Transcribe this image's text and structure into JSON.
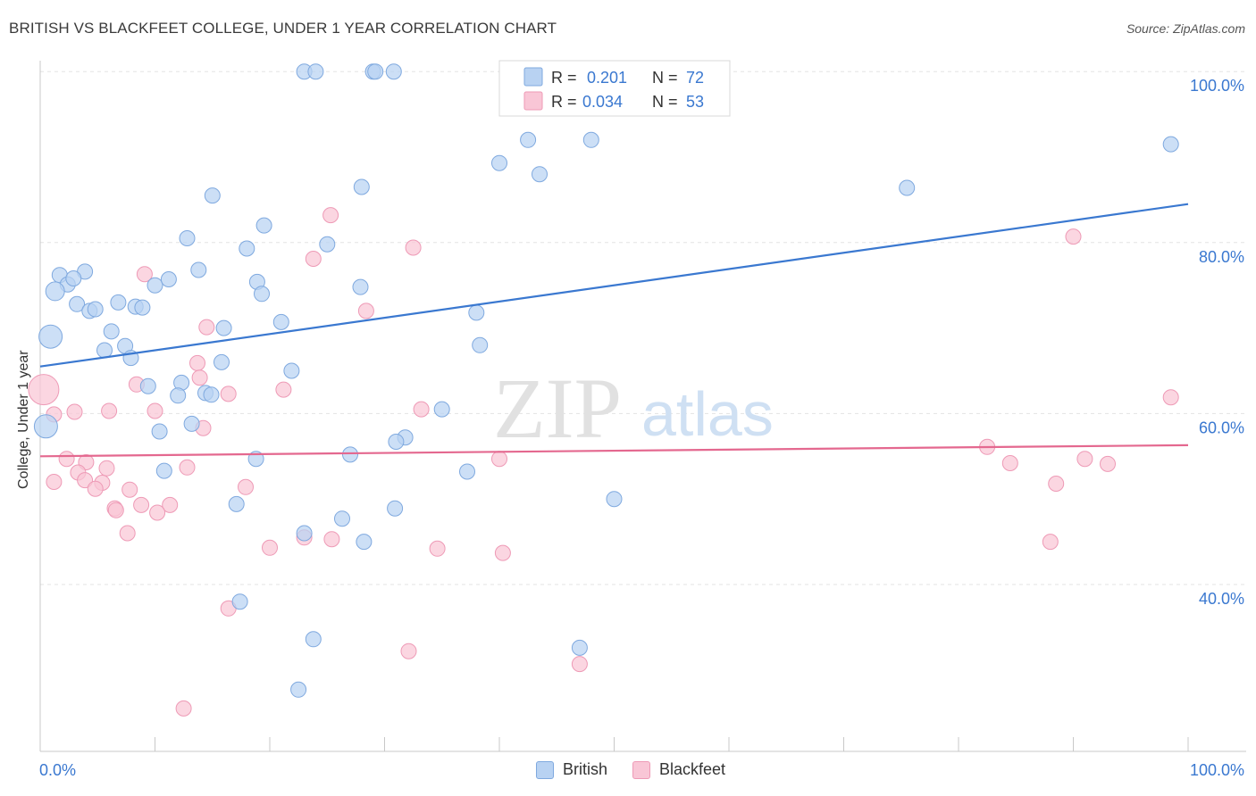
{
  "title": "BRITISH VS BLACKFEET COLLEGE, UNDER 1 YEAR CORRELATION CHART",
  "source": "Source: ZipAtlas.com",
  "watermark": {
    "zip": "ZIP",
    "atlas": "atlas"
  },
  "legend_stats": [
    {
      "r_label": "R =",
      "r_value": "0.201",
      "n_label": "N =",
      "n_value": "72"
    },
    {
      "r_label": "R =",
      "r_value": "0.034",
      "n_label": "N =",
      "n_value": "53"
    }
  ],
  "colors": {
    "british_fill": "#b8d2f2",
    "british_stroke": "#7fa9df",
    "british_line": "#3a78d0",
    "blackfeet_fill": "#f9c6d6",
    "blackfeet_stroke": "#ee9ab6",
    "blackfeet_line": "#e4688f",
    "value_text": "#3a78d0",
    "grid": "#e3e3e3"
  },
  "chart_data": {
    "type": "scatter",
    "title": "BRITISH VS BLACKFEET COLLEGE, UNDER 1 YEAR CORRELATION CHART",
    "xlabel": "",
    "ylabel": "College, Under 1 year",
    "x_tick_labels": [
      "0.0%",
      "100.0%"
    ],
    "y_tick_labels": [
      "40.0%",
      "60.0%",
      "80.0%",
      "100.0%"
    ],
    "xlim": [
      0,
      100
    ],
    "ylim": [
      20,
      102
    ],
    "legend_placement": "top-center",
    "series": [
      {
        "name": "British",
        "r": 0.201,
        "n": 72,
        "trend": [
          [
            0,
            65.5
          ],
          [
            100,
            84.5
          ]
        ],
        "points": [
          [
            23.0,
            100.0
          ],
          [
            24.0,
            100.0
          ],
          [
            29.0,
            100.0
          ],
          [
            29.2,
            100.0
          ],
          [
            49.0,
            100.0
          ],
          [
            52.0,
            100.0
          ],
          [
            42.5,
            92.0
          ],
          [
            48.0,
            92.0
          ],
          [
            98.5,
            91.5
          ],
          [
            40.0,
            89.3
          ],
          [
            43.5,
            88.0
          ],
          [
            28.0,
            86.5
          ],
          [
            75.5,
            86.4
          ],
          [
            15.0,
            85.5
          ],
          [
            19.5,
            82.0
          ],
          [
            12.8,
            80.5
          ],
          [
            25.0,
            79.8
          ],
          [
            18.0,
            79.3
          ],
          [
            1.7,
            76.2
          ],
          [
            3.9,
            76.6
          ],
          [
            13.8,
            76.8
          ],
          [
            2.4,
            75.1
          ],
          [
            2.9,
            75.8
          ],
          [
            10.0,
            75.0
          ],
          [
            11.2,
            75.7
          ],
          [
            18.9,
            75.4
          ],
          [
            27.9,
            74.8
          ],
          [
            19.3,
            74.0
          ],
          [
            1.3,
            74.3
          ],
          [
            3.2,
            72.8
          ],
          [
            4.3,
            72.0
          ],
          [
            4.8,
            72.2
          ],
          [
            6.8,
            73.0
          ],
          [
            8.3,
            72.5
          ],
          [
            8.9,
            72.4
          ],
          [
            38.0,
            71.8
          ],
          [
            21.0,
            70.7
          ],
          [
            16.0,
            70.0
          ],
          [
            0.9,
            69.0
          ],
          [
            6.2,
            69.6
          ],
          [
            5.6,
            67.4
          ],
          [
            7.4,
            67.9
          ],
          [
            38.3,
            68.0
          ],
          [
            7.9,
            66.5
          ],
          [
            15.8,
            66.0
          ],
          [
            21.9,
            65.0
          ],
          [
            9.4,
            63.2
          ],
          [
            12.3,
            63.6
          ],
          [
            14.4,
            62.4
          ],
          [
            14.9,
            62.2
          ],
          [
            12.0,
            62.1
          ],
          [
            35.0,
            60.5
          ],
          [
            0.5,
            58.5
          ],
          [
            13.2,
            58.8
          ],
          [
            10.4,
            57.9
          ],
          [
            31.8,
            57.2
          ],
          [
            31.0,
            56.7
          ],
          [
            18.8,
            54.7
          ],
          [
            27.0,
            55.2
          ],
          [
            10.8,
            53.3
          ],
          [
            37.2,
            53.2
          ],
          [
            50.0,
            50.0
          ],
          [
            17.1,
            49.4
          ],
          [
            30.9,
            48.9
          ],
          [
            26.3,
            47.7
          ],
          [
            23.0,
            46.0
          ],
          [
            28.2,
            45.0
          ],
          [
            17.4,
            38.0
          ],
          [
            23.8,
            33.6
          ],
          [
            47.0,
            32.6
          ],
          [
            22.5,
            27.7
          ],
          [
            30.8,
            100.0
          ]
        ]
      },
      {
        "name": "Blackfeet",
        "r": 0.034,
        "n": 53,
        "trend": [
          [
            0,
            55.0
          ],
          [
            100,
            56.3
          ]
        ],
        "points": [
          [
            25.3,
            83.2
          ],
          [
            90.0,
            80.7
          ],
          [
            32.5,
            79.4
          ],
          [
            23.8,
            78.1
          ],
          [
            9.1,
            76.3
          ],
          [
            28.4,
            72.0
          ],
          [
            14.5,
            70.1
          ],
          [
            13.7,
            65.9
          ],
          [
            13.9,
            64.2
          ],
          [
            8.4,
            63.4
          ],
          [
            21.2,
            62.8
          ],
          [
            16.4,
            62.3
          ],
          [
            0.3,
            62.8
          ],
          [
            98.5,
            61.9
          ],
          [
            1.2,
            59.9
          ],
          [
            3.0,
            60.2
          ],
          [
            6.0,
            60.3
          ],
          [
            10.0,
            60.3
          ],
          [
            33.2,
            60.5
          ],
          [
            14.2,
            58.3
          ],
          [
            82.5,
            56.1
          ],
          [
            4.0,
            54.3
          ],
          [
            2.3,
            54.7
          ],
          [
            40.0,
            54.7
          ],
          [
            91.0,
            54.7
          ],
          [
            5.8,
            53.6
          ],
          [
            12.8,
            53.7
          ],
          [
            3.3,
            53.1
          ],
          [
            84.5,
            54.2
          ],
          [
            93.0,
            54.1
          ],
          [
            1.2,
            52.0
          ],
          [
            3.9,
            52.2
          ],
          [
            5.4,
            51.9
          ],
          [
            4.8,
            51.2
          ],
          [
            7.8,
            51.1
          ],
          [
            17.9,
            51.4
          ],
          [
            88.5,
            51.8
          ],
          [
            8.8,
            49.3
          ],
          [
            11.3,
            49.3
          ],
          [
            6.5,
            48.9
          ],
          [
            6.6,
            48.7
          ],
          [
            10.2,
            48.4
          ],
          [
            7.6,
            46.0
          ],
          [
            25.4,
            45.3
          ],
          [
            23.0,
            45.5
          ],
          [
            88.0,
            45.0
          ],
          [
            20.0,
            44.3
          ],
          [
            34.6,
            44.2
          ],
          [
            40.3,
            43.7
          ],
          [
            16.4,
            37.2
          ],
          [
            32.1,
            32.2
          ],
          [
            47.0,
            30.7
          ],
          [
            12.5,
            25.5
          ]
        ]
      }
    ]
  }
}
